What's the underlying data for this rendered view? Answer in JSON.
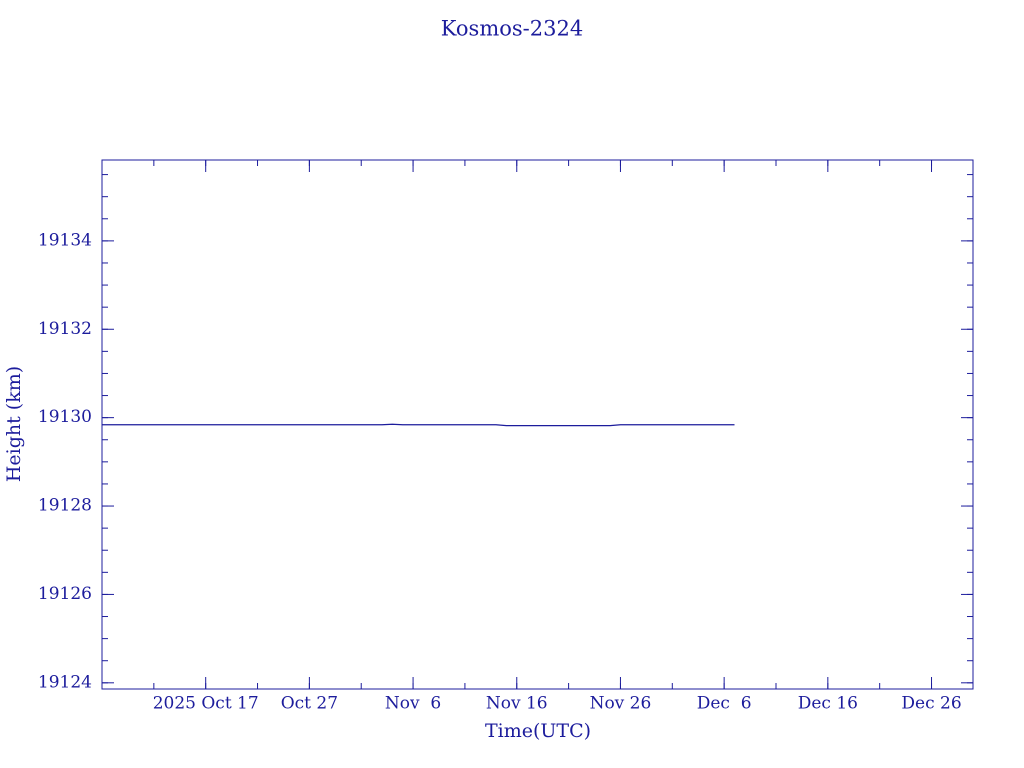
{
  "chart_data": {
    "type": "line",
    "title": "Kosmos-2324",
    "x_label": "Time(UTC)",
    "y_label": "Height (km)",
    "x": [
      "2025-10-07",
      "2025-11-03",
      "2025-11-04",
      "2025-11-05",
      "2025-11-14",
      "2025-11-15",
      "2025-11-25",
      "2025-11-26",
      "2025-12-07"
    ],
    "series": [
      {
        "name": "Height",
        "color": "#1c1c9c",
        "values": [
          19129.84,
          19129.84,
          19129.85,
          19129.84,
          19129.84,
          19129.82,
          19129.82,
          19129.84,
          19129.84
        ]
      }
    ],
    "xlim": [
      "2025-10-07",
      "2025-12-30"
    ],
    "xticks": [
      {
        "value": "2025-10-17",
        "label": "2025 Oct 17"
      },
      {
        "value": "2025-10-27",
        "label": "Oct 27"
      },
      {
        "value": "2025-11-06",
        "label": "Nov  6"
      },
      {
        "value": "2025-11-16",
        "label": "Nov 16"
      },
      {
        "value": "2025-11-26",
        "label": "Nov 26"
      },
      {
        "value": "2025-12-06",
        "label": "Dec  6"
      },
      {
        "value": "2025-12-16",
        "label": "Dec 16"
      },
      {
        "value": "2025-12-26",
        "label": "Dec 26"
      }
    ],
    "ylim": [
      19123.86,
      19135.83
    ],
    "yticks": [
      19124,
      19126,
      19128,
      19130,
      19132,
      19134
    ],
    "grid": false
  }
}
